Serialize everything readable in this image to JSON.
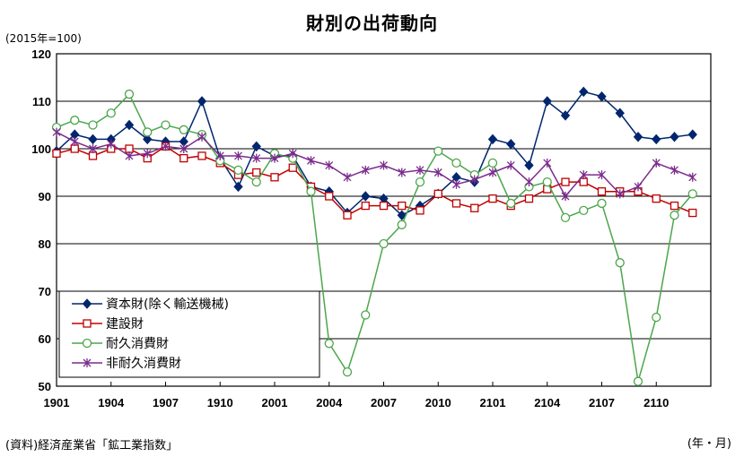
{
  "unit_label": "(2015年=100)",
  "source_note": "(資料)経済産業省「鉱工業指数」",
  "x_unit_label": "(年・月)",
  "chart_data": {
    "type": "line",
    "title": "財別の出荷動向",
    "xlabel": "(年・月)",
    "ylabel": "(2015年=100)",
    "ylim": [
      50,
      120
    ],
    "y_ticks": [
      50,
      60,
      70,
      80,
      90,
      100,
      110,
      120
    ],
    "grid": true,
    "legend_position": "bottom-left",
    "x": [
      "1901",
      "1902",
      "1903",
      "1904",
      "1905",
      "1906",
      "1907",
      "1908",
      "1909",
      "1910",
      "1911",
      "1912",
      "2001",
      "2002",
      "2003",
      "2004",
      "2005",
      "2006",
      "2007",
      "2008",
      "2009",
      "2010",
      "2011",
      "2012",
      "2101",
      "2102",
      "2103",
      "2104",
      "2105",
      "2106",
      "2107",
      "2108",
      "2109",
      "2110",
      "2111",
      "2112"
    ],
    "x_tick_labels": [
      "1901",
      "1904",
      "1907",
      "1910",
      "2001",
      "2004",
      "2007",
      "2010",
      "2101",
      "2104",
      "2107",
      "2110"
    ],
    "series": [
      {
        "name": "資本財(除く輸送機械)",
        "marker": "diamond",
        "color": "#00266e",
        "marker_fill": "#00266e",
        "values": [
          99.5,
          103,
          102,
          102,
          105,
          102,
          101.5,
          101.5,
          110,
          98,
          92,
          100.5,
          98.5,
          98.5,
          92,
          91,
          86.5,
          90,
          89.5,
          86,
          88,
          90.5,
          94,
          93,
          102,
          101,
          96.5,
          110,
          107,
          112,
          111,
          107.5,
          102.5,
          102,
          102.5,
          103
        ]
      },
      {
        "name": "建設財",
        "marker": "square",
        "color": "#c00000",
        "marker_fill": "#ffffff",
        "values": [
          99,
          100,
          98.5,
          100,
          100,
          98,
          100.5,
          98,
          98.5,
          97,
          94.5,
          95,
          94,
          96,
          92,
          90,
          86,
          88,
          88,
          88,
          87,
          90.5,
          88.5,
          87.5,
          89.5,
          88,
          89.5,
          91.5,
          93,
          93,
          91,
          91,
          91,
          89.5,
          88,
          86.5
        ]
      },
      {
        "name": "耐久消費財",
        "marker": "circle",
        "color": "#4ca64c",
        "marker_fill": "#ffffff",
        "values": [
          104.5,
          106,
          105,
          107.5,
          111.5,
          103.5,
          105,
          104,
          103,
          97.5,
          95.5,
          93,
          99,
          98,
          91,
          59,
          53,
          65,
          80,
          84,
          93,
          99.5,
          97,
          94.5,
          97,
          88.5,
          92,
          93,
          85.5,
          87,
          88.5,
          76,
          51,
          64.5,
          86,
          90.5
        ]
      },
      {
        "name": "非耐久消費財",
        "marker": "star",
        "color": "#7b2c8c",
        "marker_fill": "none",
        "values": [
          103.5,
          101.5,
          100,
          101,
          98.5,
          99,
          100.5,
          100,
          102.5,
          98.5,
          98.5,
          98,
          98,
          99,
          97.5,
          96.5,
          94,
          95.5,
          96.5,
          95,
          95.5,
          95,
          92.5,
          93.5,
          95,
          96.5,
          93,
          97,
          90,
          94.5,
          94.5,
          90.5,
          92,
          97,
          95.5,
          94
        ]
      }
    ]
  }
}
